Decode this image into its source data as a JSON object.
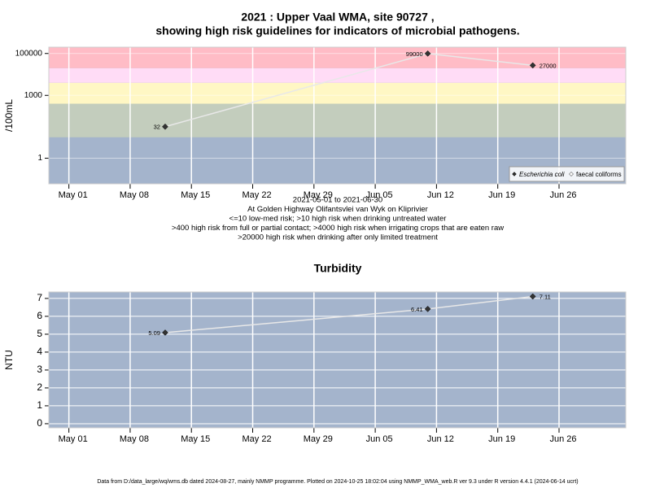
{
  "chart_data": [
    {
      "type": "line",
      "title": [
        "2021 : Upper Vaal WMA, site 90727 ,",
        "showing high risk guidelines for indicators of microbial pathogens."
      ],
      "ylabel": "/100mL",
      "notes": [
        "2021-05-01 to 2021-06-30",
        "At Golden Highway Olifantsvlei van Wyk on Kliprivier",
        "<=10 low-med risk; >10 high risk when drinking untreated water",
        ">400 high risk from full or partial contact; >4000 high risk when irrigating crops that are eaten raw",
        ">20000 high risk when drinking after only limited treatment"
      ],
      "log_scale": true,
      "grid": true,
      "legend": "bottom-right",
      "background": "#a4b4cc",
      "bands": [
        {
          "lower": 10,
          "color": "#c3cdbd"
        },
        {
          "lower": 400,
          "color": "#fff7c4"
        },
        {
          "lower": 4000,
          "color": "#ffdcf6"
        },
        {
          "lower": 20000,
          "color": "#ffbcc6"
        }
      ],
      "x": [
        "2021-05-12",
        "2021-06-11",
        "2021-06-23"
      ],
      "series": [
        {
          "name": "Escherichia coli",
          "color": "#e8e8e8",
          "marker": "filled",
          "values": [
            32,
            99000,
            27000
          ]
        },
        {
          "name": "faecal coliforms",
          "color": "#e8e8e8",
          "marker": "open",
          "values": [
            null,
            null,
            null
          ]
        }
      ],
      "xlim": [
        "2021-04-28T17:00",
        "2021-07-03T15:00"
      ],
      "xticks": [
        {
          "value": "2021-05-01",
          "label": "May 01"
        },
        {
          "value": "2021-05-08",
          "label": "May 08"
        },
        {
          "value": "2021-05-15",
          "label": "May 15"
        },
        {
          "value": "2021-05-22",
          "label": "May 22"
        },
        {
          "value": "2021-05-29",
          "label": "May 29"
        },
        {
          "value": "2021-06-05",
          "label": "Jun 05"
        },
        {
          "value": "2021-06-12",
          "label": "Jun 12"
        },
        {
          "value": "2021-06-19",
          "label": "Jun 19"
        },
        {
          "value": "2021-06-26",
          "label": "Jun 26"
        }
      ],
      "ylim": [
        0.06,
        200000
      ],
      "yticks": [
        1,
        1000,
        100000
      ]
    },
    {
      "type": "line",
      "title": [
        "Turbidity"
      ],
      "ylabel": "NTU",
      "grid": true,
      "background": "#a4b4cc",
      "x": [
        "2021-05-12",
        "2021-06-11",
        "2021-06-23"
      ],
      "values": [
        5.09,
        6.41,
        7.11
      ],
      "color": "#e8e8e8",
      "xlim": [
        "2021-04-28T17:00",
        "2021-07-03T15:00"
      ],
      "xticks": [
        {
          "value": "2021-05-01",
          "label": "May 01"
        },
        {
          "value": "2021-05-08",
          "label": "May 08"
        },
        {
          "value": "2021-05-15",
          "label": "May 15"
        },
        {
          "value": "2021-05-22",
          "label": "May 22"
        },
        {
          "value": "2021-05-29",
          "label": "May 29"
        },
        {
          "value": "2021-06-05",
          "label": "Jun 05"
        },
        {
          "value": "2021-06-12",
          "label": "Jun 12"
        },
        {
          "value": "2021-06-19",
          "label": "Jun 19"
        },
        {
          "value": "2021-06-26",
          "label": "Jun 26"
        }
      ],
      "ylim": [
        -0.23,
        7.36
      ],
      "yticks": [
        0,
        1,
        2,
        3,
        4,
        5,
        6,
        7
      ]
    }
  ],
  "footer": "Data from D:/data_large/wq/wms.db dated 2024-08-27, mainly NMMP programme. Plotted on 2024-10-25 18:02:04 using NMMP_WMA_web.R ver 9.3 under R version 4.4.1 (2024-06-14 ucrt)"
}
